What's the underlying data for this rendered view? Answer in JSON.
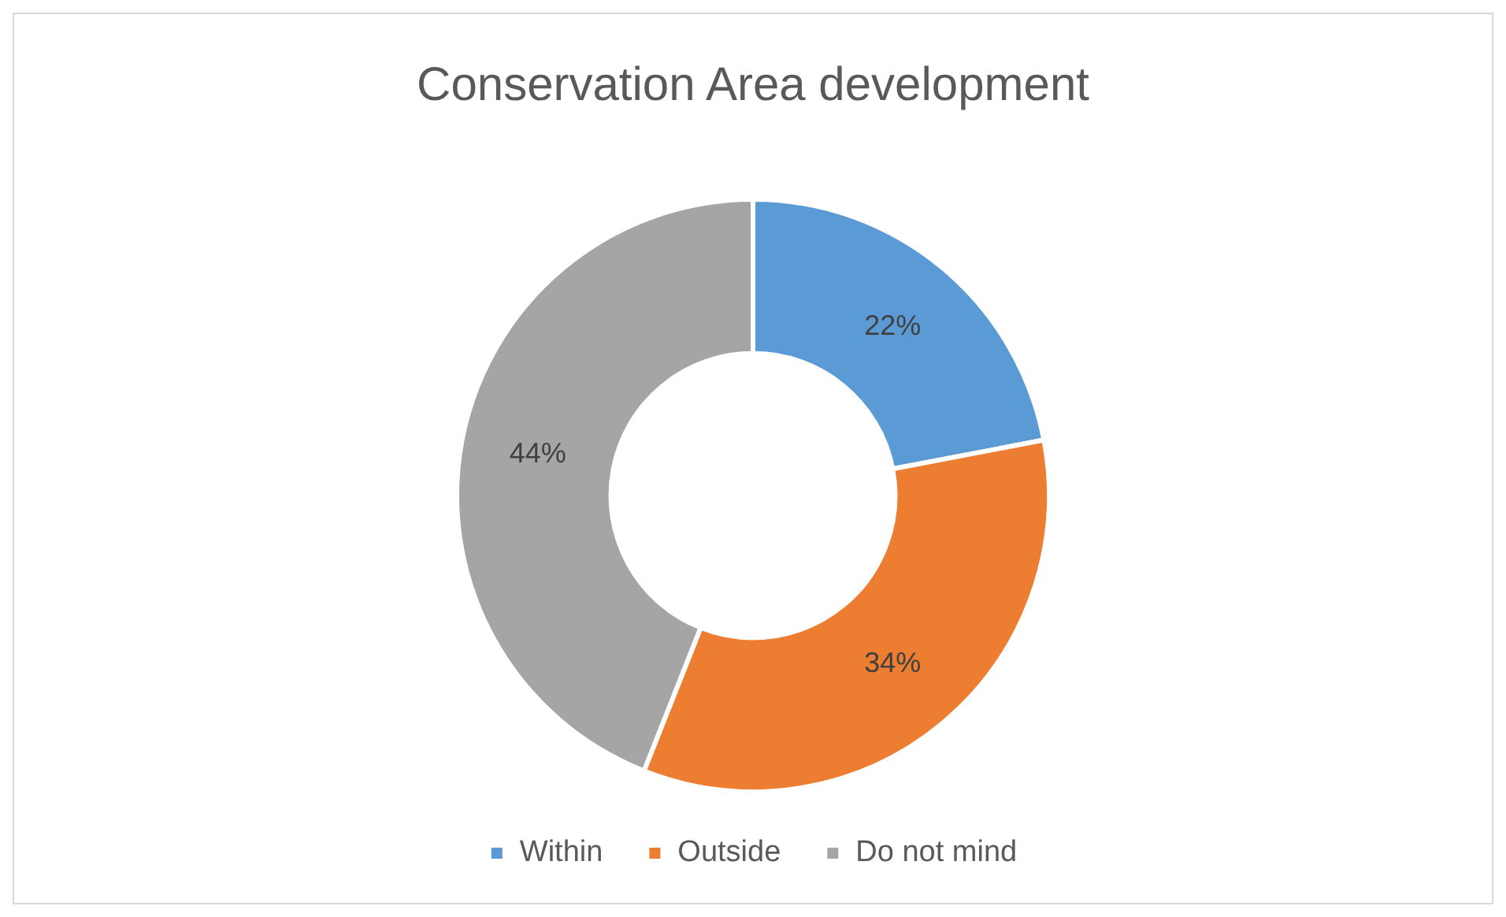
{
  "chart_data": {
    "type": "donut",
    "title": "Conservation Area development",
    "categories": [
      "Within",
      "Outside",
      "Do not mind"
    ],
    "values": [
      22,
      34,
      44
    ],
    "colors": [
      "#5b9bd5",
      "#ed7d31",
      "#a5a5a5"
    ],
    "value_labels": [
      "22%",
      "34%",
      "44%"
    ],
    "legend": "bottom"
  }
}
